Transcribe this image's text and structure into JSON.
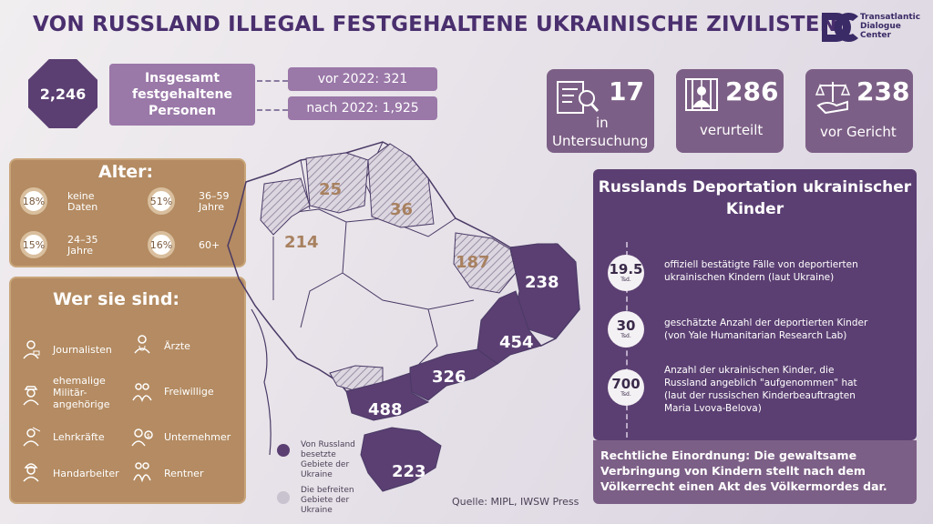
{
  "title": "VON RUSSLAND ILLEGAL FESTGEHALTENE UKRAINISCHE ZIVILISTEN",
  "logo": {
    "mark": "DC",
    "line1": "Transatlantic",
    "line2": "Dialogue",
    "line3": "Center"
  },
  "total": {
    "value": "2,246",
    "label1": "Insgesamt",
    "label2": "festgehaltene",
    "label3": "Personen"
  },
  "before": "vor 2022: 321",
  "after": "nach 2022: 1,925",
  "stats": [
    {
      "value": "17",
      "label1": "in",
      "label2": "Untersuchung",
      "icon": "investigation-icon"
    },
    {
      "value": "286",
      "label1": "verurteilt",
      "icon": "prison-icon"
    },
    {
      "value": "238",
      "label1": "vor Gericht",
      "icon": "scales-icon"
    }
  ],
  "age": {
    "title": "Alter:",
    "items": [
      {
        "pct": "18%",
        "l1": "keine",
        "l2": "Daten"
      },
      {
        "pct": "51%",
        "l1": "36–59",
        "l2": "Jahre"
      },
      {
        "pct": "15%",
        "l1": "24–35",
        "l2": "Jahre"
      },
      {
        "pct": "16%",
        "l1": "60+",
        "l2": ""
      }
    ]
  },
  "who": {
    "title": "Wer sie sind:",
    "items": [
      {
        "l1": "Journalisten",
        "l2": "",
        "l3": "",
        "icon": "journalist-icon"
      },
      {
        "l1": "Ärzte",
        "l2": "",
        "l3": "",
        "icon": "doctor-icon"
      },
      {
        "l1": "ehemalige",
        "l2": "Militär-",
        "l3": "angehörige",
        "icon": "soldier-icon"
      },
      {
        "l1": "Freiwillige",
        "l2": "",
        "l3": "",
        "icon": "volunteer-icon"
      },
      {
        "l1": "Lehrkräfte",
        "l2": "",
        "l3": "",
        "icon": "teacher-icon"
      },
      {
        "l1": "Unternehmer",
        "l2": "",
        "l3": "",
        "icon": "businessman-icon"
      },
      {
        "l1": "Handarbeiter",
        "l2": "",
        "l3": "",
        "icon": "worker-icon"
      },
      {
        "l1": "Rentner",
        "l2": "",
        "l3": "",
        "icon": "pensioner-icon"
      }
    ]
  },
  "map": {
    "labels": {
      "r25": "25",
      "r36": "36",
      "r214": "214",
      "r187": "187",
      "r238": "238",
      "r454": "454",
      "r326": "326",
      "r488": "488",
      "r223": "223"
    },
    "colors": {
      "occupied": "#5b3f72",
      "liberated": "#c9c2cf",
      "outline": "#4a3a66"
    }
  },
  "legend": {
    "occupied": {
      "l1": "Von Russland",
      "l2": "besetzte",
      "l3": "Gebiete der",
      "l4": "Ukraine"
    },
    "liberated": {
      "l1": "Die befreiten",
      "l2": "Gebiete der",
      "l3": "Ukraine"
    }
  },
  "deportation": {
    "title1": "Russlands Deportation ukrainischer",
    "title2": "Kinder",
    "items": [
      {
        "num": "19.5",
        "unit": "Tsd.",
        "l1": "offiziell bestätigte Fälle von deportierten",
        "l2": "ukrainischen Kindern (laut Ukraine)",
        "l3": ""
      },
      {
        "num": "30",
        "unit": "Tsd.",
        "l1": "geschätzte Anzahl der deportierten Kinder",
        "l2": "(von Yale Humanitarian Research Lab)",
        "l3": ""
      },
      {
        "num": "700",
        "unit": "Tsd.",
        "l1": "Anzahl der ukrainischen Kinder, die",
        "l2": "Russland angeblich \"aufgenommen\" hat",
        "l3": "(laut der russischen Kinderbeauftragten",
        "l4": "Maria Lvova-Belova)"
      }
    ]
  },
  "legal": "Rechtliche Einordnung: Die gewaltsame Verbringung von Kindern stellt nach dem Völkerrecht einen Akt des Völkermordes dar.",
  "source": "Quelle: MIPL, IWSW Press"
}
